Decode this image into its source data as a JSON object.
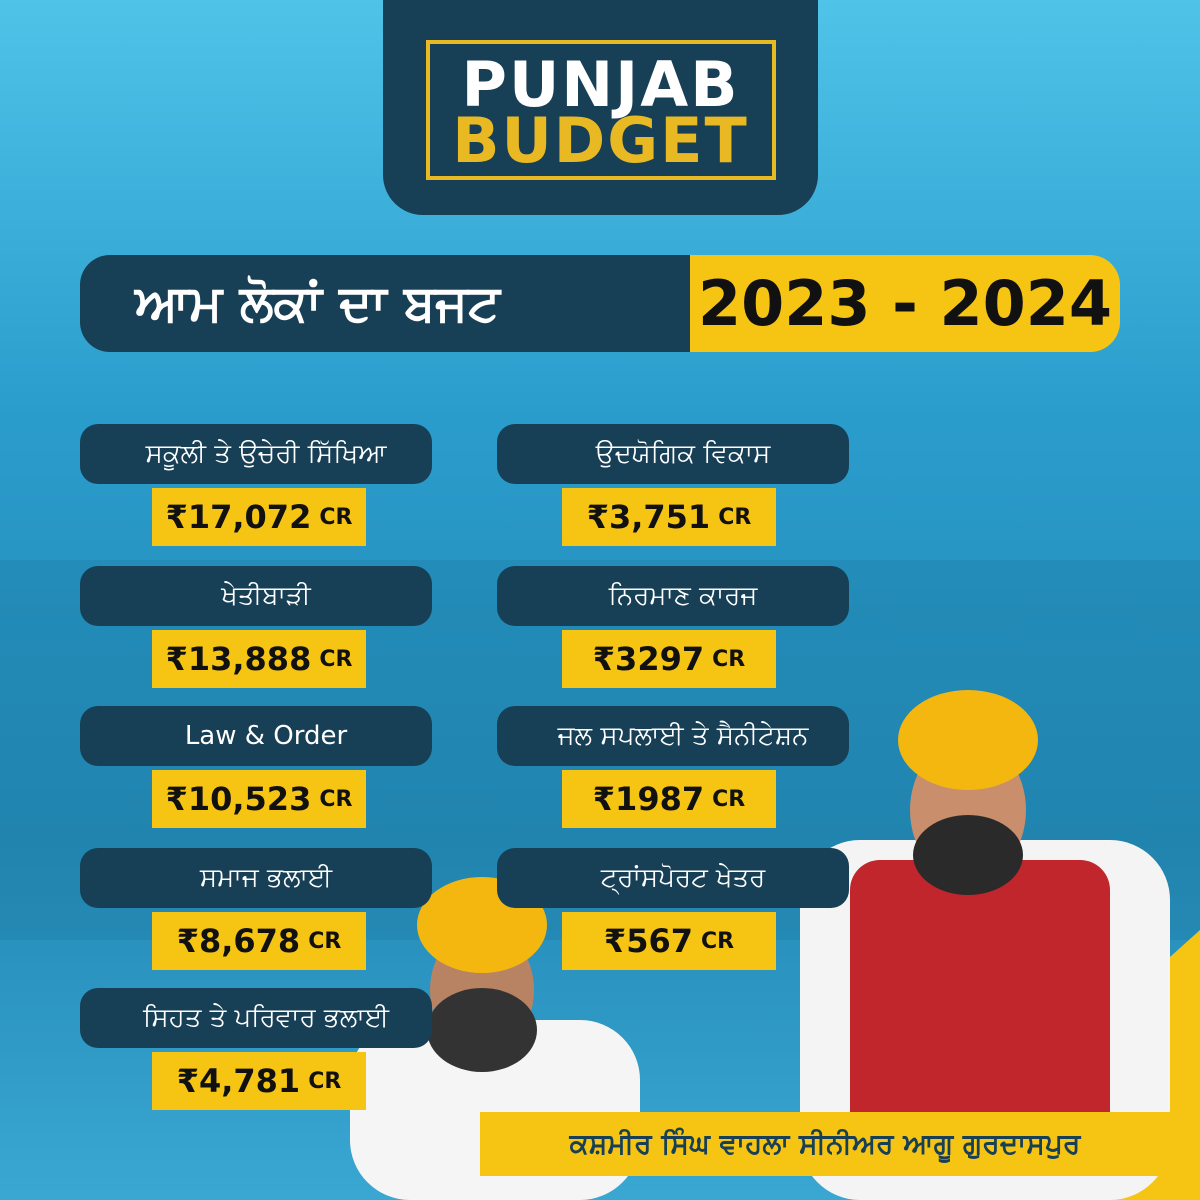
{
  "header": {
    "logo_line1": "PUNJAB",
    "logo_line2": "BUDGET"
  },
  "banner": {
    "title": "ਆਮ ਲੋਕਾਂ ਦਾ ਬਜਟ",
    "years": "2023 - 2024"
  },
  "items": [
    {
      "label": "ਸਕੂਲੀ ਤੇ ਉਚੇਰੀ ਸਿੱਖਿਆ",
      "amount": "₹17,072",
      "unit": "CR"
    },
    {
      "label": "ਖੇਤੀਬਾੜੀ",
      "amount": "₹13,888",
      "unit": "CR"
    },
    {
      "label": "Law & Order",
      "amount": "₹10,523",
      "unit": "CR"
    },
    {
      "label": "ਸਮਾਜ ਭਲਾਈ",
      "amount": "₹8,678",
      "unit": "CR"
    },
    {
      "label": "ਸਿਹਤ ਤੇ ਪਰਿਵਾਰ ਭਲਾਈ",
      "amount": "₹4,781",
      "unit": "CR"
    },
    {
      "label": "ਉਦਯੋਗਿਕ ਵਿਕਾਸ",
      "amount": "₹3,751",
      "unit": "CR"
    },
    {
      "label": "ਨਿਰਮਾਣ ਕਾਰਜ",
      "amount": "₹3297",
      "unit": "CR"
    },
    {
      "label": "ਜਲ ਸਪਲਾਈ ਤੇ ਸੈਨੀਟੇਸ਼ਨ",
      "amount": "₹1987",
      "unit": "CR"
    },
    {
      "label": "ਟ੍ਰਾਂਸਪੋਰਟ ਖੇਤਰ",
      "amount": "₹567",
      "unit": "CR"
    }
  ],
  "footer": {
    "caption": "ਕਸ਼ਮੀਰ ਸਿੰਘ ਵਾਹਲਾ ਸੀਨੀਅਰ ਆਗੂ ਗੁਰਦਾਸਪੁਰ"
  }
}
